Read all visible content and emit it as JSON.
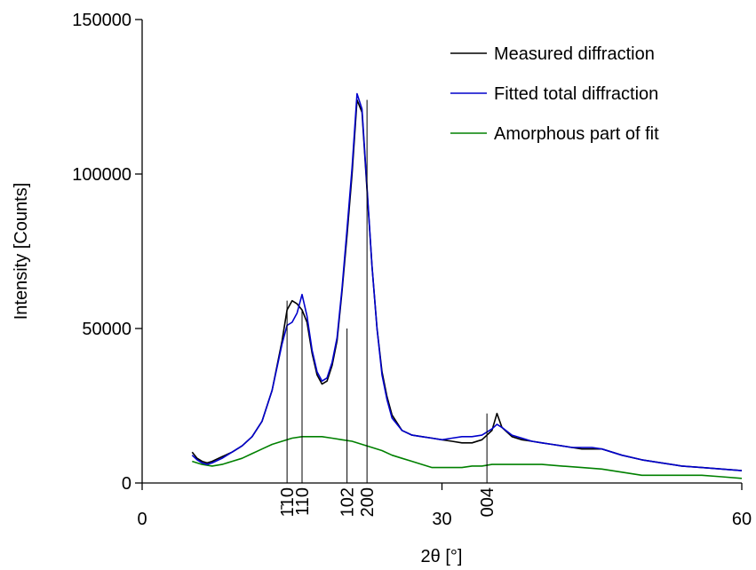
{
  "chart_data": {
    "type": "line",
    "title": "",
    "xlabel_main": "2θ",
    "xlabel_unit": "[°]",
    "ylabel": "Intensity [Counts]",
    "xlim": [
      0,
      60
    ],
    "ylim": [
      0,
      150000
    ],
    "x_ticks": [
      0,
      30,
      60
    ],
    "x_tick_labels": [
      "0",
      "30",
      "60"
    ],
    "y_ticks": [
      0,
      50000,
      100000,
      150000
    ],
    "y_tick_labels": [
      "0",
      "50000",
      "100000",
      "150000"
    ],
    "legend_position": "top-right",
    "series": [
      {
        "name": "Measured diffraction",
        "color": "#000000",
        "x": [
          5,
          5.5,
          6,
          6.5,
          7,
          8,
          9,
          10,
          11,
          12,
          13,
          14,
          14.5,
          15,
          15.5,
          16,
          16.5,
          17,
          17.5,
          18,
          18.5,
          19,
          19.5,
          20,
          20.5,
          21,
          21.5,
          22,
          22.5,
          23,
          23.5,
          24,
          24.5,
          25,
          26,
          27,
          28,
          29,
          30,
          31,
          32,
          33,
          34,
          35,
          35.5,
          36,
          37,
          38,
          39,
          40,
          41,
          42,
          43,
          44,
          45,
          46,
          47,
          48,
          50,
          52,
          54,
          56,
          58,
          60
        ],
        "y": [
          10000,
          8000,
          7000,
          6500,
          7000,
          8500,
          10000,
          12000,
          15000,
          20000,
          30000,
          46000,
          56000,
          59000,
          58000,
          56000,
          52000,
          42000,
          35000,
          32000,
          33000,
          38000,
          46000,
          62000,
          80000,
          100000,
          124000,
          120000,
          95000,
          70000,
          50000,
          36000,
          28000,
          22000,
          17000,
          15500,
          15000,
          14500,
          14000,
          13500,
          13000,
          13000,
          14000,
          17000,
          22500,
          18000,
          15000,
          14000,
          13500,
          13000,
          12500,
          12000,
          11500,
          11000,
          11000,
          11000,
          10000,
          9000,
          7500,
          6500,
          5500,
          5000,
          4500,
          4000
        ]
      },
      {
        "name": "Fitted total diffraction",
        "color": "#0000cc",
        "x": [
          5,
          5.5,
          6,
          6.5,
          7,
          8,
          9,
          10,
          11,
          12,
          13,
          14,
          14.5,
          15,
          15.5,
          16,
          16.5,
          17,
          17.5,
          18,
          18.5,
          19,
          19.5,
          20,
          20.5,
          21,
          21.5,
          22,
          22.5,
          23,
          23.5,
          24,
          24.5,
          25,
          26,
          27,
          28,
          29,
          30,
          31,
          32,
          33,
          34,
          35,
          35.5,
          36,
          37,
          38,
          39,
          40,
          41,
          42,
          43,
          44,
          45,
          46,
          47,
          48,
          50,
          52,
          54,
          56,
          58,
          60
        ],
        "y": [
          9000,
          7500,
          6500,
          6000,
          6500,
          8000,
          10000,
          12000,
          15000,
          20000,
          30000,
          45000,
          51000,
          52000,
          55000,
          61000,
          54000,
          43000,
          36000,
          33000,
          34000,
          39000,
          47000,
          63000,
          82000,
          102000,
          126000,
          121000,
          96000,
          70000,
          50000,
          35000,
          27000,
          21000,
          17000,
          15500,
          15000,
          14500,
          14000,
          14500,
          15000,
          15000,
          15500,
          17500,
          19000,
          18000,
          15500,
          14500,
          13500,
          13000,
          12500,
          12000,
          11500,
          11500,
          11500,
          11000,
          10000,
          9000,
          7500,
          6500,
          5500,
          5000,
          4500,
          4000
        ]
      },
      {
        "name": "Amorphous part of fit",
        "color": "#008000",
        "x": [
          5,
          6,
          7,
          8,
          9,
          10,
          11,
          12,
          13,
          14,
          15,
          16,
          17,
          18,
          19,
          20,
          21,
          22,
          23,
          24,
          25,
          26,
          27,
          28,
          29,
          30,
          31,
          32,
          33,
          34,
          35,
          36,
          38,
          40,
          42,
          44,
          46,
          48,
          50,
          52,
          54,
          56,
          58,
          60
        ],
        "y": [
          7000,
          6000,
          5500,
          6000,
          7000,
          8000,
          9500,
          11000,
          12500,
          13500,
          14500,
          15000,
          15000,
          15000,
          14500,
          14000,
          13500,
          12500,
          11500,
          10500,
          9000,
          8000,
          7000,
          6000,
          5000,
          5000,
          5000,
          5000,
          5500,
          5500,
          6000,
          6000,
          6000,
          6000,
          5500,
          5000,
          4500,
          3500,
          2500,
          2500,
          2500,
          2500,
          2000,
          1500
        ]
      }
    ],
    "peaks": [
      {
        "label": "1̄10",
        "x": 14.5,
        "y": 59000
      },
      {
        "label": "110",
        "x": 16,
        "y": 56000
      },
      {
        "label": "102",
        "x": 20.5,
        "y": 50000
      },
      {
        "label": "200",
        "x": 22.5,
        "y": 124000
      },
      {
        "label": "004",
        "x": 34.5,
        "y": 22500
      }
    ]
  }
}
